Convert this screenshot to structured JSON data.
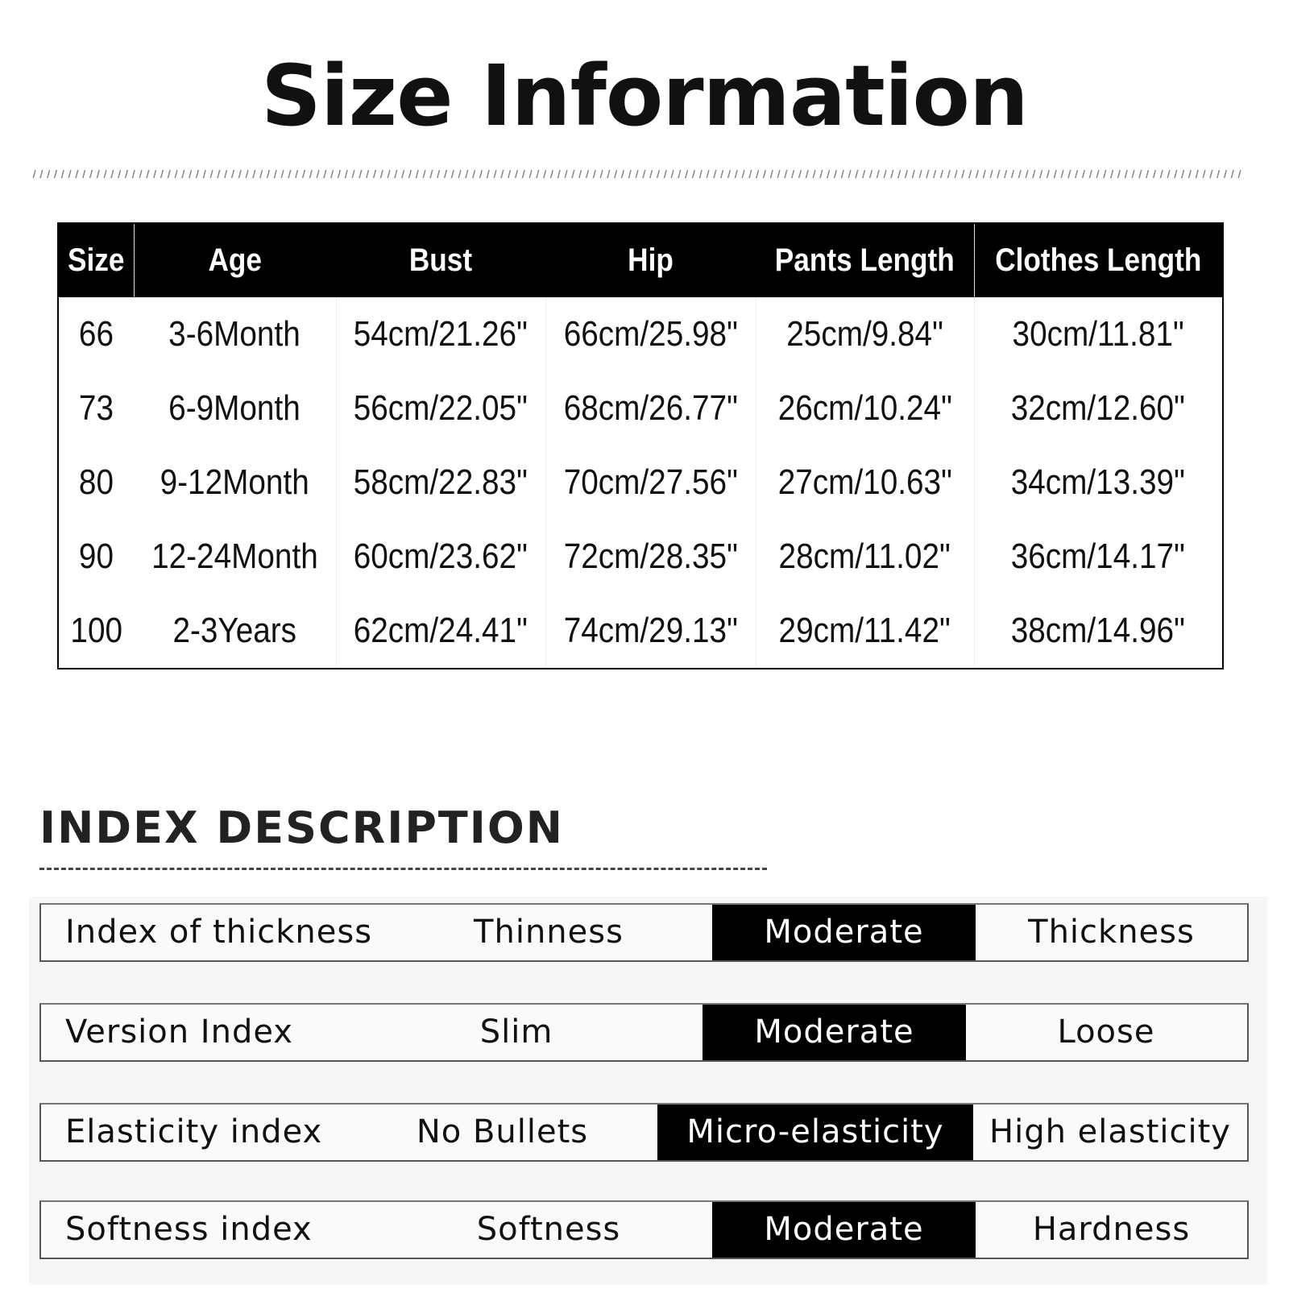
{
  "title": "Size Information",
  "size_table": {
    "headers": [
      "Size",
      "Age",
      "Bust",
      "Hip",
      "Pants Length",
      "Clothes Length"
    ],
    "rows": [
      [
        "66",
        "3-6Month",
        "54cm/21.26\"",
        "66cm/25.98\"",
        "25cm/9.84\"",
        "30cm/11.81\""
      ],
      [
        "73",
        "6-9Month",
        "56cm/22.05\"",
        "68cm/26.77\"",
        "26cm/10.24\"",
        "32cm/12.60\""
      ],
      [
        "80",
        "9-12Month",
        "58cm/22.83\"",
        "70cm/27.56\"",
        "27cm/10.63\"",
        "34cm/13.39\""
      ],
      [
        "90",
        "12-24Month",
        "60cm/23.62\"",
        "72cm/28.35\"",
        "28cm/11.02\"",
        "36cm/14.17\""
      ],
      [
        "100",
        "2-3Years",
        "62cm/24.41\"",
        "74cm/29.13\"",
        "29cm/11.42\"",
        "38cm/14.96\""
      ]
    ]
  },
  "index": {
    "heading": "INDEX DESCRIPTION",
    "rows": [
      {
        "label": "Index of thickness",
        "options": [
          "Thinness",
          "Moderate",
          "Thickness"
        ],
        "selected": "Moderate"
      },
      {
        "label": "Version Index",
        "options": [
          "Slim",
          "Moderate",
          "Loose"
        ],
        "selected": "Moderate"
      },
      {
        "label": "Elasticity index",
        "options": [
          "No Bullets",
          "Micro-elasticity",
          "High elasticity"
        ],
        "selected": "Micro-elasticity"
      },
      {
        "label": "Softness index",
        "options": [
          "Softness",
          "Moderate",
          "Hardness"
        ],
        "selected": "Moderate"
      }
    ]
  }
}
